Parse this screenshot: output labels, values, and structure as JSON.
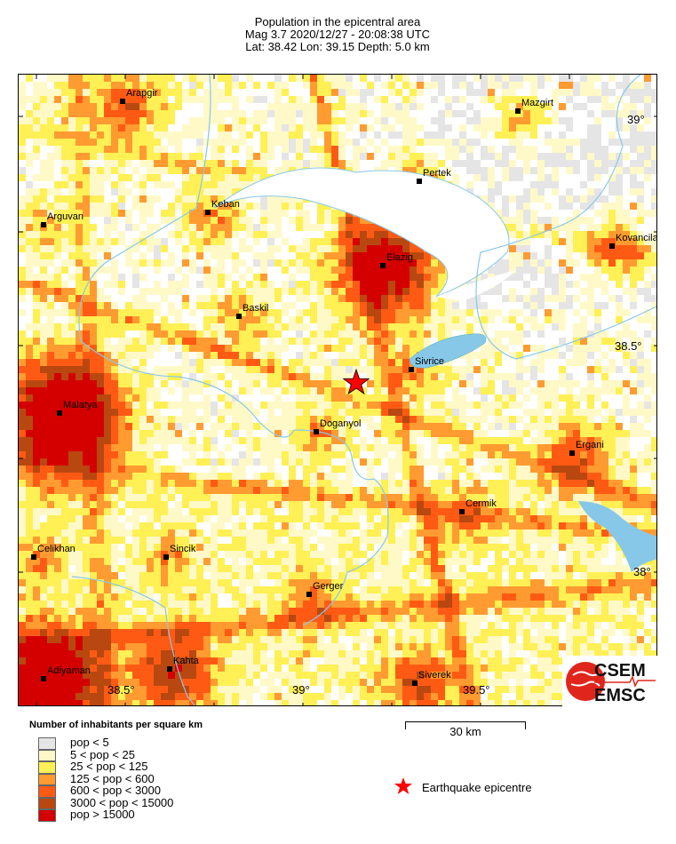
{
  "header": {
    "title": "Population in the epicentral area",
    "line2": "Mag 3.7  2020/12/27 - 20:08:38 UTC",
    "line3": "Lat: 38.42    Lon:  39.15     Depth:  5.0 km"
  },
  "event": {
    "magnitude": 3.7,
    "date": "2020/12/27",
    "time": "20:08:38 UTC",
    "lat": 38.42,
    "lon": 39.15,
    "depth_km": 5.0
  },
  "map": {
    "cities": [
      "Arapgir",
      "Mazgirt",
      "Pertek",
      "Keban",
      "Arguvan",
      "Kovancila",
      "Elazig",
      "Baskil",
      "Sivrice",
      "Malatya",
      "Doganyol",
      "Ergani",
      "Cermik",
      "Celikhan",
      "Sincik",
      "Gerger",
      "Adiyaman",
      "Kahta",
      "Siverek"
    ],
    "lat_labels": [
      "39°",
      "38.5°",
      "38°"
    ],
    "lon_labels": [
      "38.5°",
      "39°",
      "39.5°"
    ],
    "water_color": "#87c8e8",
    "epicentre_color": "#ff0000"
  },
  "logo": {
    "top": "CSEM",
    "bottom": "EMSC"
  },
  "legend": {
    "title": "Number of inhabitants per square km",
    "items": [
      {
        "label": "pop < 5",
        "color": "#e5e5e5"
      },
      {
        "label": "5 < pop < 25",
        "color": "#fff9c8"
      },
      {
        "label": "25 < pop < 125",
        "color": "#fff055"
      },
      {
        "label": "125 < pop < 600",
        "color": "#ff9b30"
      },
      {
        "label": "600 < pop < 3000",
        "color": "#ff5a14"
      },
      {
        "label": "3000 < pop < 15000",
        "color": "#b8480f"
      },
      {
        "label": "pop > 15000",
        "color": "#d40000"
      }
    ],
    "scale_label": "30 km",
    "epicentre_label": "Earthquake epicentre"
  }
}
